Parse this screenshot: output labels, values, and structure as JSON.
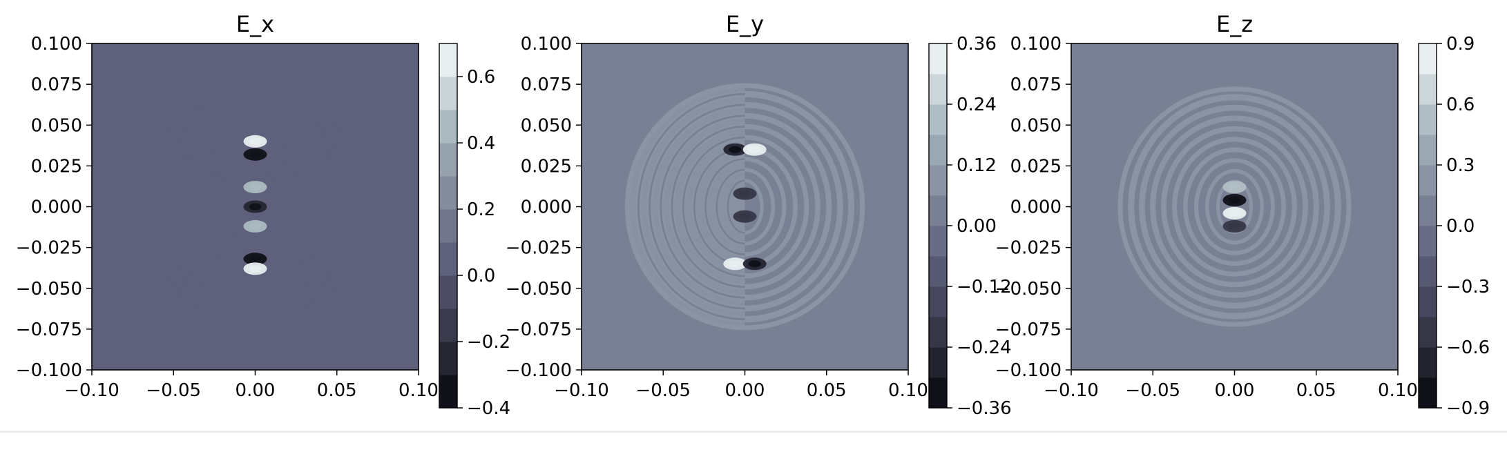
{
  "chart_data": [
    {
      "type": "contour",
      "title": "E_x",
      "xlabel": "",
      "ylabel": "",
      "xlim": [
        -0.1,
        0.1
      ],
      "ylim": [
        -0.1,
        0.1
      ],
      "x_ticks": [
        "−0.10",
        "−0.05",
        "0.00",
        "0.05",
        "0.10"
      ],
      "y_ticks": [
        "0.100",
        "0.075",
        "0.050",
        "0.025",
        "0.000",
        "−0.025",
        "−0.050",
        "−0.075",
        "−0.100"
      ],
      "colorbar": {
        "range": [
          -0.4,
          0.7
        ],
        "levels": 11,
        "ticks": [
          "−0.4",
          "−0.2",
          "0.0",
          "0.2",
          "0.4",
          "0.6"
        ],
        "tick_values": [
          -0.4,
          -0.2,
          0.0,
          0.2,
          0.4,
          0.6
        ]
      },
      "background_level": 0.0,
      "feature_level": 0.05,
      "disc_radius": 0.07,
      "hotspots": [
        {
          "x": 0.0,
          "y": 0.04,
          "value": 0.65
        },
        {
          "x": 0.0,
          "y": 0.032,
          "value": -0.4
        },
        {
          "x": 0.0,
          "y": 0.012,
          "value": 0.4
        },
        {
          "x": 0.0,
          "y": 0.0,
          "value": -0.3
        },
        {
          "x": 0.0,
          "y": -0.012,
          "value": 0.4
        },
        {
          "x": 0.0,
          "y": -0.032,
          "value": -0.4
        },
        {
          "x": 0.0,
          "y": -0.038,
          "value": 0.65
        }
      ]
    },
    {
      "type": "contour",
      "title": "E_y",
      "xlabel": "",
      "ylabel": "",
      "xlim": [
        -0.1,
        0.1
      ],
      "ylim": [
        -0.1,
        0.1
      ],
      "x_ticks": [
        "−0.10",
        "−0.05",
        "0.00",
        "0.05",
        "0.10"
      ],
      "y_ticks": [
        "0.100",
        "0.075",
        "0.050",
        "0.025",
        "0.000",
        "−0.025",
        "−0.050",
        "−0.075",
        "−0.100"
      ],
      "colorbar": {
        "range": [
          -0.36,
          0.36
        ],
        "levels": 12,
        "ticks": [
          "−0.36",
          "−0.24",
          "−0.12",
          "0.00",
          "0.12",
          "0.24",
          "0.36"
        ],
        "tick_values": [
          -0.36,
          -0.24,
          -0.12,
          0.0,
          0.12,
          0.24,
          0.36
        ]
      },
      "background_level": 0.0,
      "feature_level": 0.06,
      "disc_radius": 0.072,
      "hotspots": [
        {
          "x": -0.006,
          "y": 0.035,
          "value": -0.3
        },
        {
          "x": 0.006,
          "y": 0.035,
          "value": 0.34
        },
        {
          "x": 0.0,
          "y": 0.008,
          "value": -0.2
        },
        {
          "x": 0.0,
          "y": -0.006,
          "value": -0.2
        },
        {
          "x": -0.006,
          "y": -0.035,
          "value": 0.34
        },
        {
          "x": 0.006,
          "y": -0.035,
          "value": -0.3
        }
      ]
    },
    {
      "type": "contour",
      "title": "E_z",
      "xlabel": "",
      "ylabel": "",
      "xlim": [
        -0.1,
        0.1
      ],
      "ylim": [
        -0.1,
        0.1
      ],
      "x_ticks": [
        "−0.10",
        "−0.05",
        "0.00",
        "0.05",
        "0.10"
      ],
      "y_ticks": [
        "0.100",
        "0.075",
        "0.050",
        "0.025",
        "0.000",
        "−0.025",
        "−0.050",
        "−0.075",
        "−0.100"
      ],
      "colorbar": {
        "range": [
          -0.9,
          0.9
        ],
        "levels": 12,
        "ticks": [
          "−0.9",
          "−0.6",
          "−0.3",
          "0.0",
          "0.3",
          "0.6",
          "0.9"
        ],
        "tick_values": [
          -0.9,
          -0.6,
          -0.3,
          0.0,
          0.3,
          0.6,
          0.9
        ]
      },
      "background_level": 0.0,
      "feature_level": 0.25,
      "disc_radius": 0.07,
      "hotspots": [
        {
          "x": 0.0,
          "y": 0.004,
          "value": -0.9
        },
        {
          "x": 0.0,
          "y": -0.004,
          "value": 0.9
        },
        {
          "x": 0.0,
          "y": 0.012,
          "value": 0.5
        },
        {
          "x": 0.0,
          "y": -0.012,
          "value": -0.5
        }
      ]
    }
  ]
}
